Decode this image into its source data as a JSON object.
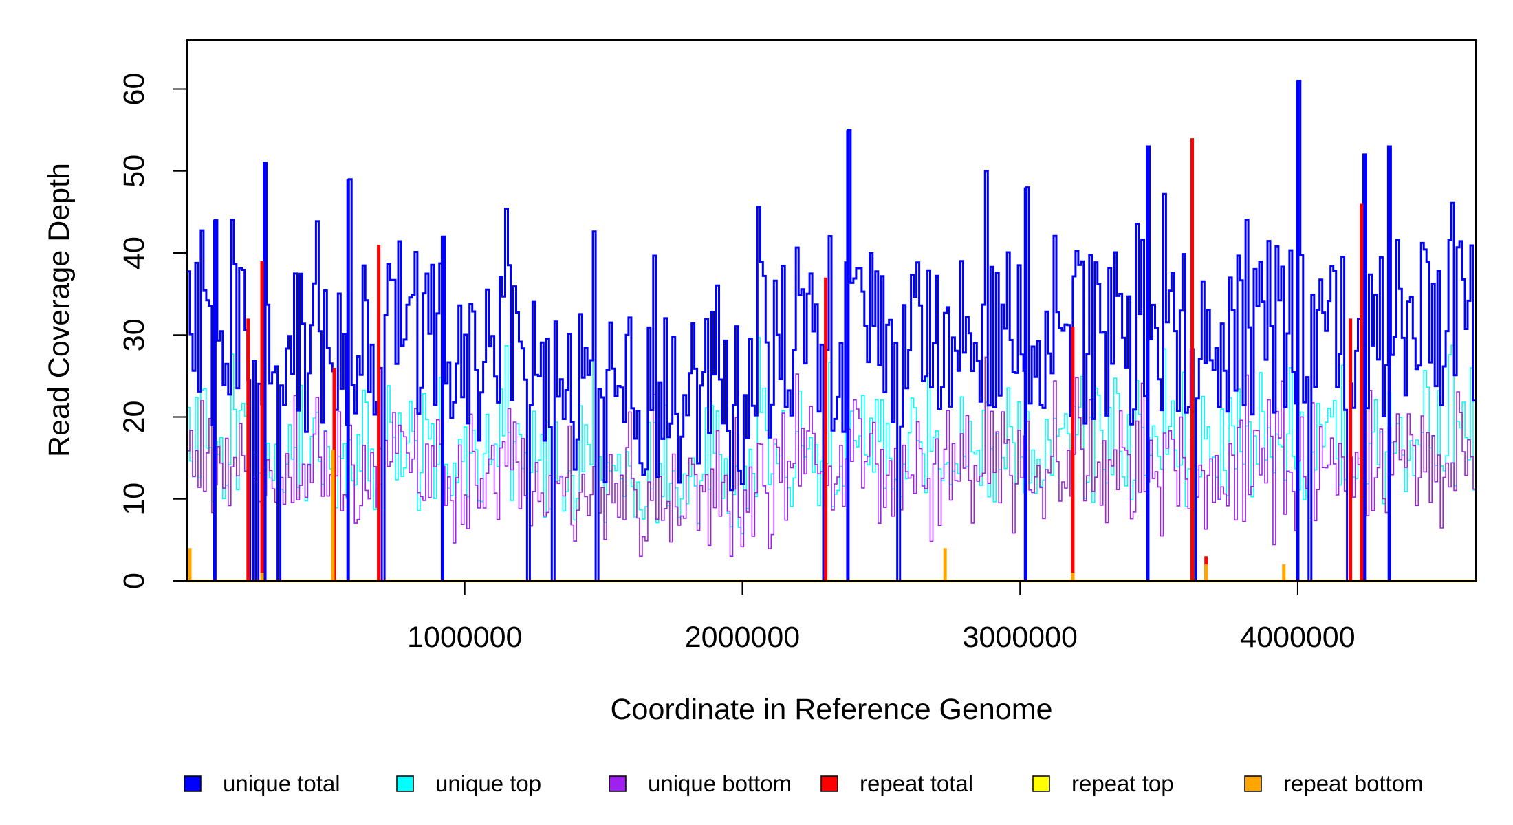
{
  "chart_data": {
    "type": "line",
    "xlabel": "Coordinate in Reference Genome",
    "ylabel": "Read Coverage Depth",
    "xlim": [
      0,
      4641652
    ],
    "ylim": [
      0,
      66
    ],
    "x_ticks": [
      1000000,
      2000000,
      3000000,
      4000000
    ],
    "x_tick_labels": [
      "1000000",
      "2000000",
      "3000000",
      "4000000"
    ],
    "y_ticks": [
      0,
      10,
      20,
      30,
      40,
      50,
      60
    ],
    "y_tick_labels": [
      "0",
      "10",
      "20",
      "30",
      "40",
      "50",
      "60"
    ],
    "grid": false,
    "legend_position": "bottom",
    "series": [
      {
        "name": "unique total",
        "color": "#0000FF"
      },
      {
        "name": "unique top",
        "color": "#00FFFF"
      },
      {
        "name": "unique bottom",
        "color": "#A020F0"
      },
      {
        "name": "repeat total",
        "color": "#FF0000"
      },
      {
        "name": "repeat top",
        "color": "#FFFF00"
      },
      {
        "name": "repeat bottom",
        "color": "#FFA500"
      }
    ],
    "unique_total_peaks": [
      {
        "x": 100000,
        "y": 44
      },
      {
        "x": 280000,
        "y": 51
      },
      {
        "x": 580000,
        "y": 49
      },
      {
        "x": 920000,
        "y": 42
      },
      {
        "x": 2380000,
        "y": 55
      },
      {
        "x": 3020000,
        "y": 48
      },
      {
        "x": 3460000,
        "y": 53
      },
      {
        "x": 4000000,
        "y": 61
      },
      {
        "x": 4240000,
        "y": 52
      },
      {
        "x": 4330000,
        "y": 53
      }
    ],
    "repeat_total_spikes": [
      {
        "x": 220000,
        "y": 32
      },
      {
        "x": 270000,
        "y": 39
      },
      {
        "x": 530000,
        "y": 26
      },
      {
        "x": 690000,
        "y": 41
      },
      {
        "x": 2300000,
        "y": 37
      },
      {
        "x": 3190000,
        "y": 31
      },
      {
        "x": 3620000,
        "y": 54
      },
      {
        "x": 3670000,
        "y": 3
      },
      {
        "x": 4190000,
        "y": 32
      },
      {
        "x": 4230000,
        "y": 46
      }
    ],
    "repeat_bottom_spikes": [
      {
        "x": 10000,
        "y": 4
      },
      {
        "x": 270000,
        "y": 1
      },
      {
        "x": 525000,
        "y": 16
      },
      {
        "x": 2730000,
        "y": 4
      },
      {
        "x": 3190000,
        "y": 1
      },
      {
        "x": 3670000,
        "y": 2
      },
      {
        "x": 3950000,
        "y": 2
      }
    ]
  }
}
